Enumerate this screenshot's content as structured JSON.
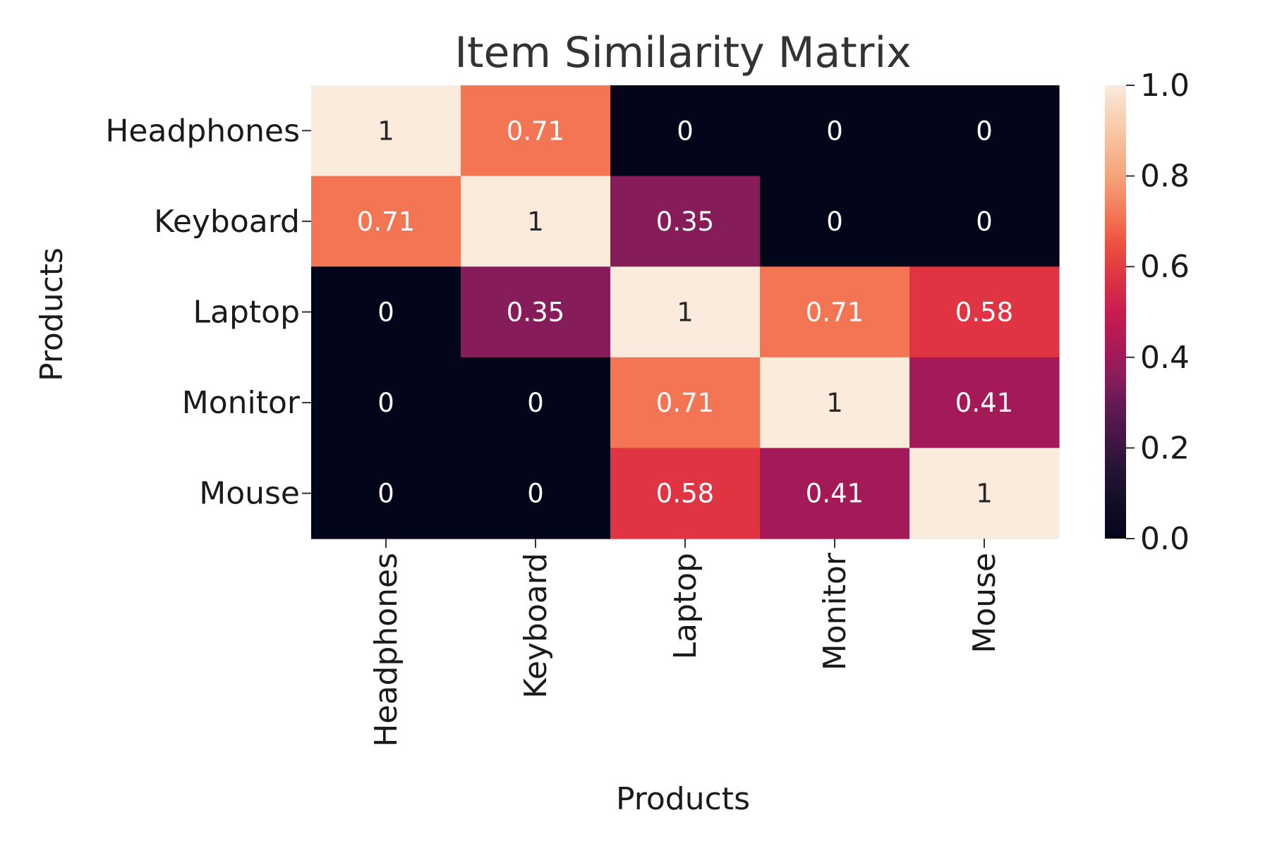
{
  "chart_data": {
    "type": "heatmap",
    "title": "Item Similarity Matrix",
    "xlabel": "Products",
    "ylabel": "Products",
    "x_categories": [
      "Headphones",
      "Keyboard",
      "Laptop",
      "Monitor",
      "Mouse"
    ],
    "y_categories": [
      "Headphones",
      "Keyboard",
      "Laptop",
      "Monitor",
      "Mouse"
    ],
    "values": [
      [
        1,
        0.71,
        0,
        0,
        0
      ],
      [
        0.71,
        1,
        0.35,
        0,
        0
      ],
      [
        0,
        0.35,
        1,
        0.71,
        0.58
      ],
      [
        0,
        0,
        0.71,
        1,
        0.41
      ],
      [
        0,
        0,
        0.58,
        0.41,
        1
      ]
    ],
    "value_labels": [
      [
        "1",
        "0.71",
        "0",
        "0",
        "0"
      ],
      [
        "0.71",
        "1",
        "0.35",
        "0",
        "0"
      ],
      [
        "0",
        "0.35",
        "1",
        "0.71",
        "0.58"
      ],
      [
        "0",
        "0",
        "0.71",
        "1",
        "0.41"
      ],
      [
        "0",
        "0",
        "0.58",
        "0.41",
        "1"
      ]
    ],
    "colorbar": {
      "range": [
        0.0,
        1.0
      ],
      "ticks": [
        "0.0",
        "0.2",
        "0.4",
        "0.6",
        "0.8",
        "1.0"
      ]
    },
    "colormap": "rocket"
  }
}
